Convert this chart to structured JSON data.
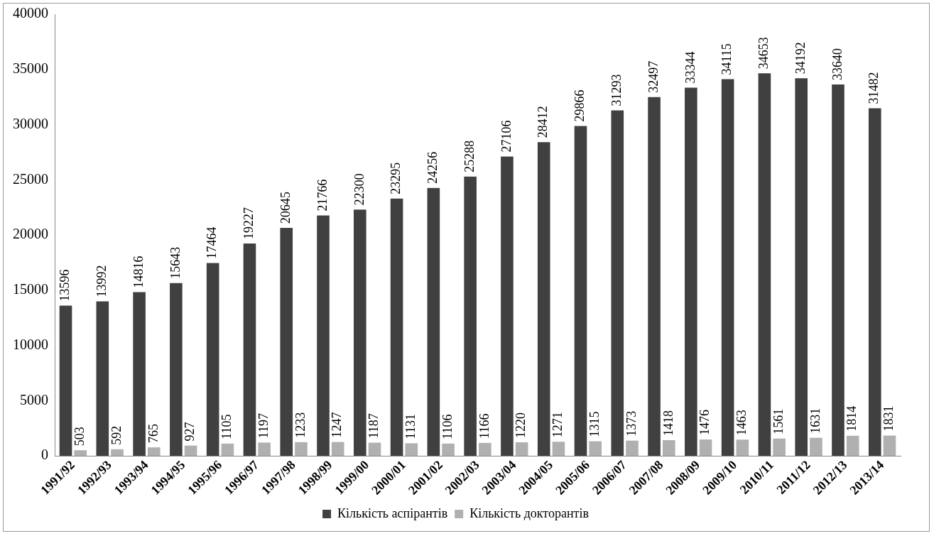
{
  "chart_data": {
    "type": "bar",
    "categories": [
      "1991/92",
      "1992/93",
      "1993/94",
      "1994/95",
      "1995/96",
      "1996/97",
      "1997/98",
      "1998/99",
      "1999/00",
      "2000/01",
      "2001/02",
      "2002/03",
      "2003/04",
      "2004/05",
      "2005/06",
      "2006/07",
      "2007/08",
      "2008/09",
      "2009/10",
      "2010/11",
      "2011/12",
      "2012/13",
      "2013/14"
    ],
    "series": [
      {
        "name": "Кількість аспірантів",
        "color": "#404040",
        "values": [
          13596,
          13992,
          14816,
          15643,
          17464,
          19227,
          20645,
          21766,
          22300,
          23295,
          24256,
          25288,
          27106,
          28412,
          29866,
          31293,
          32497,
          33344,
          34115,
          34653,
          34192,
          33640,
          31482
        ]
      },
      {
        "name": "Кількість докторантів",
        "color": "#b0b0b0",
        "values": [
          503,
          592,
          765,
          927,
          1105,
          1197,
          1233,
          1247,
          1187,
          1131,
          1106,
          1166,
          1220,
          1271,
          1315,
          1373,
          1418,
          1476,
          1463,
          1561,
          1631,
          1814,
          1831
        ]
      }
    ],
    "ylim": [
      0,
      40000
    ],
    "yticks": [
      0,
      5000,
      10000,
      15000,
      20000,
      25000,
      30000,
      35000,
      40000
    ],
    "grid": false,
    "legend": "bottom",
    "data_labels": true
  }
}
